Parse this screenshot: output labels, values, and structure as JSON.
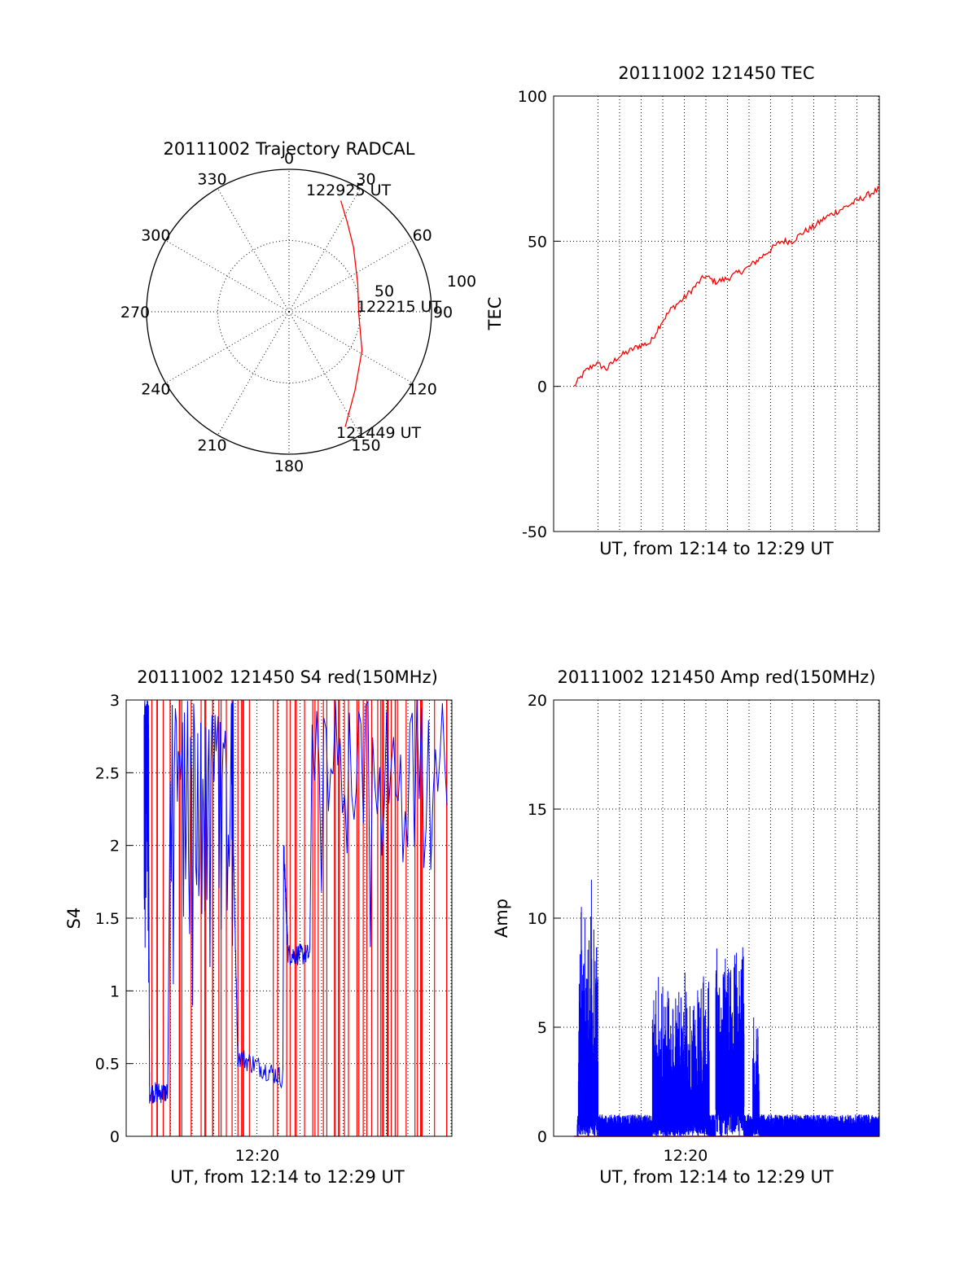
{
  "chart_data": [
    {
      "id": "trajectory",
      "type": "scatter",
      "title": "20111002 Trajectory RADCAL",
      "projection": "polar",
      "azimuth_labels": [
        "0",
        "30",
        "60",
        "90",
        "120",
        "150",
        "180",
        "210",
        "240",
        "270",
        "300",
        "330"
      ],
      "radial_labels": [
        "50",
        "100"
      ],
      "rlim": [
        0,
        100
      ],
      "grid": true,
      "series": [
        {
          "color": "#ff0000",
          "points": [
            {
              "az": 154,
              "r": 90
            },
            {
              "az": 140,
              "r": 72
            },
            {
              "az": 118,
              "r": 58
            },
            {
              "az": 92,
              "r": 49
            },
            {
              "az": 68,
              "r": 52
            },
            {
              "az": 45,
              "r": 64
            },
            {
              "az": 33,
              "r": 75
            },
            {
              "az": 25,
              "r": 86
            }
          ]
        }
      ],
      "annotations": [
        {
          "text": "122925 UT",
          "az": 25,
          "r": 86
        },
        {
          "text": "122215 UT",
          "az": 92,
          "r": 49
        },
        {
          "text": "121449 UT",
          "az": 154,
          "r": 90
        }
      ]
    },
    {
      "id": "tec",
      "type": "line",
      "title": "20111002 121450 TEC",
      "xlabel": "UT, from 12:14 to 12:29 UT",
      "ylabel": "TEC",
      "ylim": [
        -50,
        100
      ],
      "yticks": [
        "-50",
        "0",
        "50",
        "100"
      ],
      "xtick_labels": [],
      "grid": true,
      "series": [
        {
          "color": "#ff0000",
          "x": [
            0,
            0.5,
            1,
            1.5,
            2,
            2.5,
            3,
            3.5,
            4,
            4.5,
            5,
            5.5,
            6,
            6.5,
            7,
            7.5,
            8,
            8.5,
            9,
            9.5,
            10,
            10.5,
            11,
            11.5,
            12,
            12.5,
            13,
            13.5,
            14
          ],
          "y": [
            0,
            5,
            8,
            6,
            10,
            12,
            14,
            15,
            22,
            27,
            30,
            34,
            38,
            36,
            37,
            39,
            41,
            44,
            47,
            50,
            50,
            53,
            55,
            58,
            60,
            62,
            64,
            66,
            68
          ]
        }
      ]
    },
    {
      "id": "s4",
      "type": "line",
      "title": "20111002 121450 S4 red(150MHz)",
      "xlabel": "UT, from 12:14 to 12:29 UT",
      "ylabel": "S4",
      "ylim": [
        0,
        3
      ],
      "yticks": [
        "0",
        "0.5",
        "1",
        "1.5",
        "2",
        "2.5",
        "3"
      ],
      "xtick_labels": [
        "12:20"
      ],
      "grid": true,
      "series": [
        {
          "color": "#ff0000",
          "description_values": "saturated spikes between 0 and 3"
        },
        {
          "color": "#0000ff",
          "segments": [
            {
              "x": [
                0.0,
                0.2,
                0.25,
                1.1
              ],
              "y": [
                3.0,
                2.5,
                0.3,
                0.3
              ]
            },
            {
              "x": [
                1.2,
                4.0,
                4.3,
                6.4
              ],
              "y": [
                3.0,
                2.6,
                0.55,
                0.4
              ]
            },
            {
              "x": [
                6.4,
                6.6,
                7.6
              ],
              "y": [
                2.0,
                1.25,
                1.25
              ]
            },
            {
              "x": [
                7.6,
                14.0
              ],
              "y": [
                2.6,
                2.7
              ]
            }
          ]
        }
      ]
    },
    {
      "id": "amp",
      "type": "line",
      "title": "20111002 121450 Amp red(150MHz)",
      "xlabel": "UT, from 12:14 to 12:29 UT",
      "ylabel": "Amp",
      "ylim": [
        0,
        20
      ],
      "yticks": [
        "0",
        "5",
        "10",
        "15",
        "20"
      ],
      "xtick_labels": [
        "12:20"
      ],
      "grid": true,
      "series": [
        {
          "color": "#ff0000",
          "y_constant": 0
        },
        {
          "color": "#0000ff",
          "bursts": [
            {
              "x0": 0.2,
              "x1": 1.1,
              "max": 12,
              "base": 2
            },
            {
              "x0": 3.6,
              "x1": 6.2,
              "max": 8,
              "base": 1
            },
            {
              "x0": 6.5,
              "x1": 7.8,
              "max": 9.4,
              "base": 3
            },
            {
              "x0": 8.2,
              "x1": 8.5,
              "max": 6.2,
              "base": 1
            }
          ],
          "baseline": 0.5
        }
      ]
    }
  ]
}
